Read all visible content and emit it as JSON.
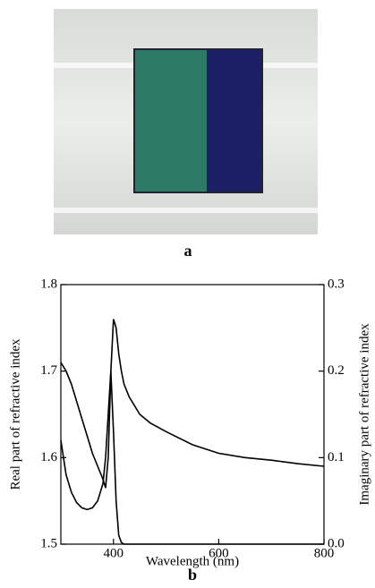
{
  "figure": {
    "photo_label": "a"
  },
  "chart_data": {
    "type": "line",
    "panel_label": "b",
    "xlabel": "Wavelength (nm)",
    "ylabel": "Real part of refractive index",
    "y2label": "Imaginary part of refractive index",
    "x": [
      300,
      310,
      320,
      330,
      340,
      350,
      360,
      370,
      380,
      385,
      390,
      395,
      400,
      405,
      410,
      415,
      420,
      430,
      440,
      450,
      470,
      500,
      550,
      600,
      650,
      700,
      750,
      800
    ],
    "series": [
      {
        "color": "#000000",
        "values": [
          1.71,
          1.7,
          1.685,
          1.665,
          1.645,
          1.625,
          1.605,
          1.59,
          1.575,
          1.565,
          1.6,
          1.7,
          1.76,
          1.75,
          1.72,
          1.7,
          1.685,
          1.67,
          1.66,
          1.65,
          1.64,
          1.63,
          1.615,
          1.605,
          1.6,
          1.597,
          1.593,
          1.59
        ]
      },
      {
        "color": "#000000",
        "axis": "y2",
        "values": [
          0.12,
          0.08,
          0.06,
          0.048,
          0.042,
          0.04,
          0.042,
          0.05,
          0.07,
          0.1,
          0.15,
          0.2,
          0.13,
          0.05,
          0.01,
          0.002,
          0,
          0,
          0,
          0,
          0,
          0,
          0,
          0,
          0,
          0,
          0,
          0
        ]
      }
    ],
    "xlim": [
      300,
      800
    ],
    "xticks": [
      400,
      600,
      800
    ],
    "ylim": [
      1.5,
      1.8
    ],
    "yticks": [
      1.5,
      1.6,
      1.7,
      1.8
    ],
    "y2lim": [
      0,
      0.3
    ],
    "y2ticks": [
      {
        "value": 0,
        "label": "0.0"
      },
      0.1,
      0.2,
      0.3
    ]
  }
}
